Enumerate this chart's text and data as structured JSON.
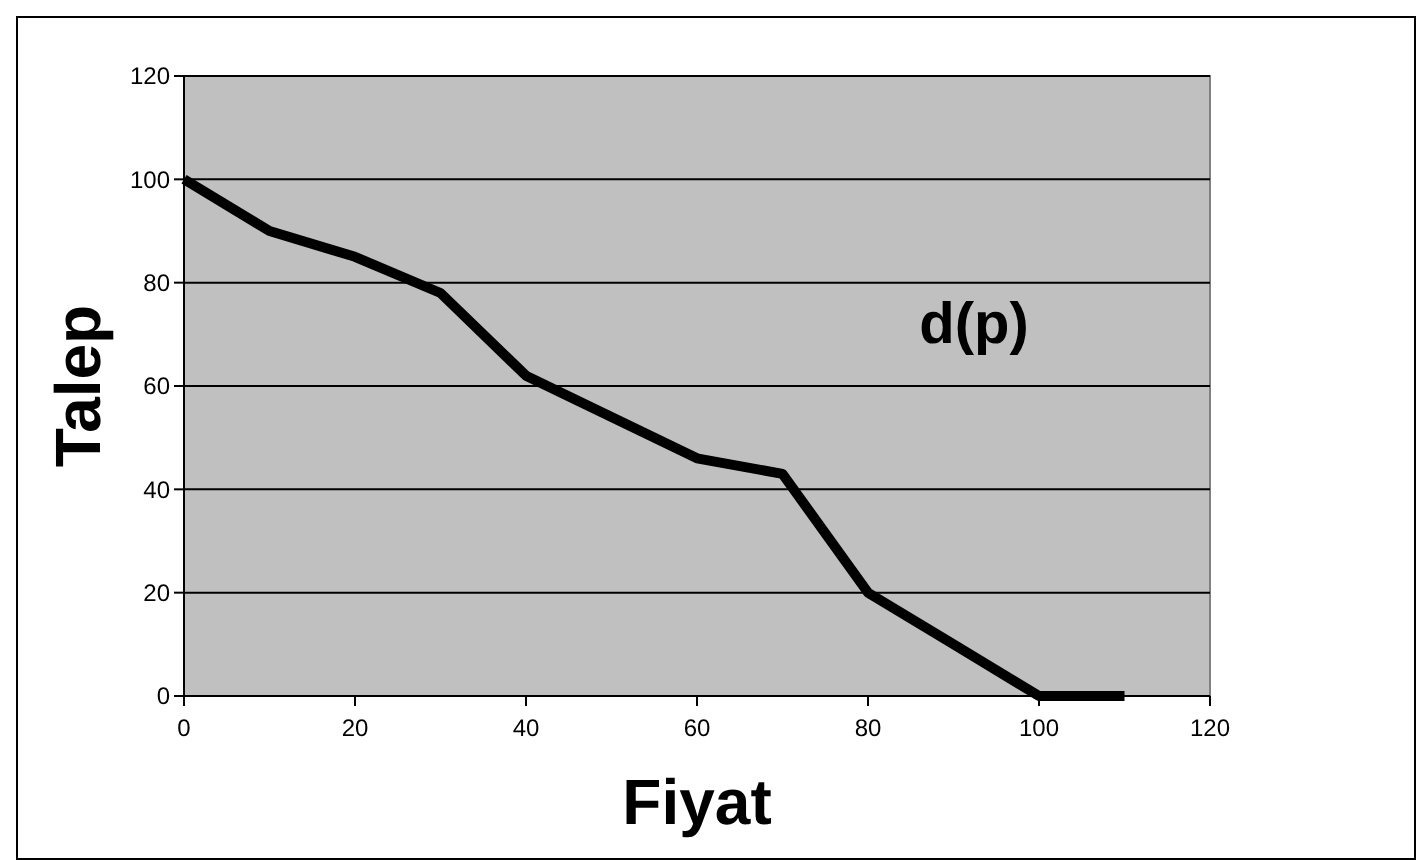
{
  "chart_data": {
    "type": "line",
    "xlabel": "Fiyat",
    "ylabel": "Talep",
    "annotations": [
      "d(p)"
    ],
    "series": [
      {
        "color": "#000000",
        "x": [
          0,
          10,
          20,
          30,
          40,
          50,
          60,
          70,
          80,
          90,
          100,
          110
        ],
        "values": [
          100,
          90,
          85,
          78,
          62,
          54,
          46,
          43,
          20,
          10,
          0,
          0
        ]
      }
    ],
    "xlim": [
      0,
      120
    ],
    "xticks": [
      0,
      20,
      40,
      60,
      80,
      100,
      120
    ],
    "ylim": [
      0,
      120
    ],
    "yticks": [
      0,
      20,
      40,
      60,
      80,
      100,
      120
    ],
    "grid": "y",
    "marker": "none",
    "line_style": "solid"
  }
}
